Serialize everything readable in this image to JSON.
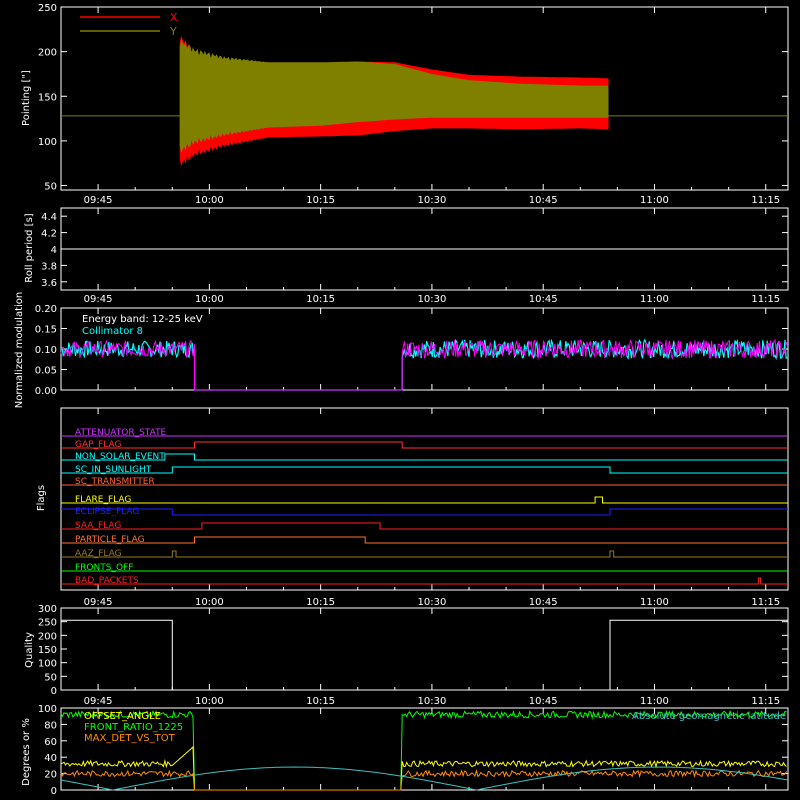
{
  "x_ticks": [
    "09:45",
    "10:00",
    "10:15",
    "10:30",
    "10:45",
    "11:00",
    "11:15"
  ],
  "colors": {
    "x_series": "#ff0000",
    "y_series": "#808000",
    "cyan": "#00ffff",
    "magenta": "#ff00ff",
    "green": "#00ff00",
    "yellow": "#ffff00",
    "orange": "#ff8c00",
    "blue": "#0000ff",
    "purple": "#cc33ff",
    "red_dark": "#d81b1b"
  },
  "chart_data": [
    {
      "type": "area",
      "ylabel": "Pointing [\"]",
      "ylim": [
        45,
        250
      ],
      "y_ticks": [
        50,
        100,
        150,
        200,
        250
      ],
      "legend": [
        "X",
        "Y"
      ],
      "series": [
        {
          "name": "X",
          "color": "#ff0000",
          "time": [
            "09:56",
            "09:58",
            "10:02",
            "10:08",
            "10:15",
            "10:20",
            "10:25",
            "10:30",
            "10:35",
            "10:42",
            "10:50",
            "10:54"
          ],
          "upper": [
            210,
            195,
            188,
            186,
            187,
            189,
            188,
            180,
            174,
            172,
            171,
            170
          ],
          "lower": [
            80,
            90,
            98,
            104,
            105,
            106,
            111,
            114,
            114,
            113,
            114,
            113
          ]
        },
        {
          "name": "Y",
          "color": "#808000",
          "time": [
            "09:56",
            "09:58",
            "10:02",
            "10:08",
            "10:15",
            "10:20",
            "10:25",
            "10:30",
            "10:35",
            "10:42",
            "10:50",
            "10:54"
          ],
          "upper": [
            205,
            196,
            190,
            188,
            188,
            189,
            186,
            175,
            168,
            164,
            162,
            162
          ],
          "lower": [
            95,
            104,
            110,
            115,
            117,
            121,
            124,
            126,
            126,
            126,
            126,
            126
          ]
        }
      ],
      "baseline": 128
    },
    {
      "type": "line",
      "ylabel": "Roll period [s]",
      "ylim": [
        3.5,
        4.5
      ],
      "y_ticks": [
        3.6,
        3.8,
        4.0,
        4.2,
        4.4
      ],
      "value": 4.0
    },
    {
      "type": "line",
      "ylabel": "Normalized modulation",
      "ylim": [
        0,
        0.2
      ],
      "y_ticks": [
        "0.00",
        "0.05",
        "0.10",
        "0.15",
        "0.20"
      ],
      "annotations": [
        "Energy band: 12-25 keV",
        "Collimator 8"
      ],
      "segments": [
        {
          "start": "09:40",
          "end": "09:58",
          "level": 0.1
        },
        {
          "start": "10:26",
          "end": "11:18",
          "level": 0.1
        }
      ],
      "gap_level": 0.0
    },
    {
      "type": "line",
      "ylabel": "Flags",
      "flags": [
        {
          "name": "ATTENUATOR_STATE",
          "color": "#cc33ff",
          "steps": [
            [
              "09:40",
              0
            ]
          ]
        },
        {
          "name": "GAP_FLAG",
          "color": "#ff3030",
          "steps": [
            [
              "09:40",
              0
            ],
            [
              "09:58",
              1
            ],
            [
              "10:26",
              0
            ]
          ]
        },
        {
          "name": "NON_SOLAR_EVENT",
          "color": "#00ffff",
          "steps": [
            [
              "09:40",
              0
            ],
            [
              "09:54",
              1
            ],
            [
              "09:58",
              0
            ]
          ]
        },
        {
          "name": "SC_IN_SUNLIGHT",
          "color": "#00ffff",
          "steps": [
            [
              "09:40",
              0
            ],
            [
              "09:55",
              1
            ],
            [
              "10:54",
              0
            ]
          ]
        },
        {
          "name": "SC_TRANSMITTER",
          "color": "#ff6030",
          "steps": [
            [
              "09:40",
              0
            ]
          ]
        },
        {
          "name": "FLARE_FLAG",
          "color": "#ffff00",
          "steps": [
            [
              "09:40",
              0
            ],
            [
              "10:52",
              1
            ],
            [
              "10:53",
              0
            ]
          ]
        },
        {
          "name": "ECLIPSE_FLAG",
          "color": "#2020ff",
          "steps": [
            [
              "09:40",
              1
            ],
            [
              "09:55",
              0
            ],
            [
              "10:54",
              1
            ]
          ]
        },
        {
          "name": "SAA_FLAG",
          "color": "#ff2020",
          "steps": [
            [
              "09:40",
              0
            ],
            [
              "09:59",
              1
            ],
            [
              "10:23",
              0
            ]
          ]
        },
        {
          "name": "PARTICLE_FLAG",
          "color": "#ff7030",
          "steps": [
            [
              "09:40",
              0
            ],
            [
              "09:58",
              1
            ],
            [
              "10:21",
              0
            ]
          ]
        },
        {
          "name": "AAZ_FLAG",
          "color": "#9a7a1a",
          "steps": [
            [
              "09:40",
              0
            ],
            [
              "09:55",
              1
            ],
            [
              "09:55.5",
              0
            ],
            [
              "10:54",
              1
            ],
            [
              "10:54.5",
              0
            ]
          ]
        },
        {
          "name": "FRONTS_OFF",
          "color": "#00ff00",
          "steps": [
            [
              "09:40",
              0
            ]
          ]
        },
        {
          "name": "BAD_PACKETS",
          "color": "#ff2020",
          "steps": [
            [
              "09:40",
              0
            ],
            [
              "11:14",
              1
            ],
            [
              "11:14.3",
              0
            ]
          ]
        }
      ]
    },
    {
      "type": "line",
      "ylabel": "Quality",
      "ylim": [
        0,
        300
      ],
      "y_ticks": [
        0,
        50,
        100,
        150,
        200,
        250,
        300
      ],
      "steps": [
        [
          "09:40",
          255
        ],
        [
          "09:55",
          0
        ],
        [
          "10:54",
          255
        ],
        [
          "11:18",
          255
        ]
      ]
    },
    {
      "type": "line",
      "ylabel": "Degrees or %",
      "ylim": [
        0,
        100
      ],
      "y_ticks": [
        0,
        20,
        40,
        60,
        80,
        100
      ],
      "legend": [
        "OFFSET_ANGLE",
        "FRONT_RATIO_1225",
        "MAX_DET_VS_TOT"
      ],
      "annotation_right": "Absolute geomagnetic latitude",
      "series": [
        {
          "name": "FRONT_RATIO_1225",
          "color": "#00ff00",
          "level": 92
        },
        {
          "name": "OFFSET_ANGLE",
          "color": "#ffff00",
          "level": 32
        },
        {
          "name": "MAX_DET_VS_TOT",
          "color": "#ff8c00",
          "level": 20
        },
        {
          "name": "Absolute geomagnetic latitude",
          "color": "#40c0c0"
        }
      ]
    }
  ]
}
